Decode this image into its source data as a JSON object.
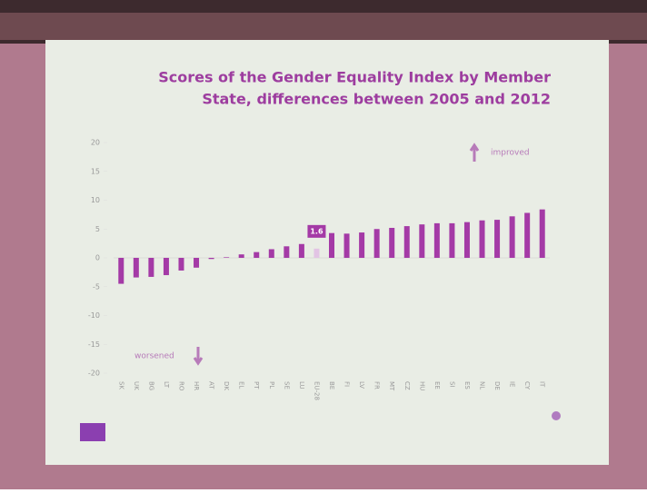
{
  "chart_data": {
    "type": "bar",
    "title": [
      "Scores of the Gender Equality Index  by Member",
      "State, differences between 2005 and 2012"
    ],
    "categories": [
      "SK",
      "UK",
      "BG",
      "LT",
      "RO",
      "HR",
      "AT",
      "DK",
      "EL",
      "PT",
      "PL",
      "SE",
      "LU",
      "EU-28",
      "BE",
      "FI",
      "LV",
      "FR",
      "MT",
      "CZ",
      "HU",
      "EE",
      "SI",
      "ES",
      "NL",
      "DE",
      "IE",
      "CY",
      "IT"
    ],
    "values": [
      -4.5,
      -3.4,
      -3.3,
      -3,
      -2.2,
      -1.7,
      -0.2,
      0.1,
      0.6,
      1,
      1.5,
      2,
      2.4,
      1.6,
      4.3,
      4.2,
      4.4,
      5,
      5.2,
      5.5,
      5.8,
      6,
      6,
      6.2,
      6.5,
      6.6,
      7.2,
      7.8,
      8.4
    ],
    "color": "#a43aa6",
    "highlight": {
      "category": "EU-28",
      "color": "#e2c4e4"
    },
    "ylim": [
      -20,
      20
    ],
    "yticks": [
      -20,
      -15,
      -10,
      -5,
      0,
      5,
      10,
      15,
      20
    ],
    "annotations": {
      "up": "improved",
      "down": "worsened"
    }
  }
}
